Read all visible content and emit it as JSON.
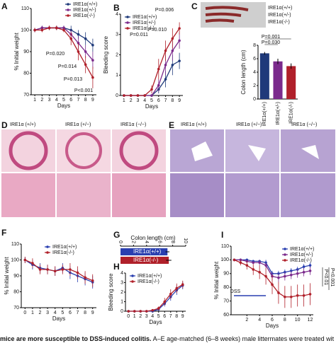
{
  "panel_labels": [
    "A",
    "B",
    "C",
    "D",
    "E",
    "F",
    "G",
    "H",
    "I"
  ],
  "images": {
    "C": [
      "IRE1α(+/+)",
      "IRE1α(+/-)",
      "IRE1α(-/-)"
    ],
    "D": [
      "IRE1α (+/+)",
      "IRE1α (+/−)",
      "IRE1α (−/−)"
    ],
    "E": [
      "IRE1α (+/+)",
      "IRE1α (+/−)",
      "IRE1α (−/−)"
    ]
  },
  "caption_bold": "mice are more susceptible to DSS-induced colitis.",
  "caption_rest": " A–E age-matched (6–8 weeks) male littermates were treated wit",
  "chart_data": [
    {
      "type": "line",
      "xlabel": "Days",
      "ylabel": "% Initial weight",
      "legend": "upper right",
      "x": [
        1,
        2,
        3,
        4,
        5,
        6,
        7,
        8,
        9
      ],
      "xlim": [
        0.5,
        9.5
      ],
      "xticks": [
        1,
        2,
        3,
        4,
        5,
        6,
        7,
        8,
        9
      ],
      "ylim": [
        70,
        110
      ],
      "yticks": [
        70,
        80,
        90,
        100,
        110
      ],
      "series": [
        {
          "name": "IRE1α(+/+)",
          "color": "#1f3a7a",
          "values": [
            100,
            101,
            101,
            101,
            101,
            100,
            98,
            96,
            93
          ],
          "errors": [
            1,
            1,
            1,
            1,
            1,
            2,
            2,
            3,
            3
          ]
        },
        {
          "name": "IRE1α(+/-)",
          "color": "#7b2a8c",
          "values": [
            100,
            101,
            101,
            101,
            101,
            98,
            94,
            90,
            86
          ],
          "errors": [
            1,
            1,
            1,
            1,
            1,
            2,
            3,
            3,
            4
          ]
        },
        {
          "name": "IRE1α(-/-)",
          "color": "#b0202a",
          "values": [
            100,
            100,
            101,
            101,
            100,
            96,
            90,
            84,
            78
          ],
          "errors": [
            1,
            1,
            1,
            1,
            1,
            3,
            4,
            4,
            5
          ]
        }
      ],
      "annotations": [
        "P=0.020",
        "P=0.014",
        "P=0.013",
        "P<0.001"
      ]
    },
    {
      "type": "line",
      "xlabel": "Days",
      "ylabel": "Bleeding score",
      "legend": "upper left",
      "x": [
        1,
        2,
        3,
        4,
        5,
        6,
        7,
        8,
        9
      ],
      "xlim": [
        0.5,
        9.5
      ],
      "xticks": [
        1,
        2,
        3,
        4,
        5,
        6,
        7,
        8,
        9
      ],
      "ylim": [
        0,
        4
      ],
      "yticks": [
        0,
        1,
        2,
        3,
        4
      ],
      "series": [
        {
          "name": "IRE1α(+/+)",
          "color": "#1f3a7a",
          "values": [
            0,
            0,
            0,
            0,
            0,
            0.3,
            0.8,
            1.5,
            1.7
          ],
          "errors": [
            0,
            0,
            0,
            0,
            0,
            0.2,
            0.4,
            0.5,
            0.4
          ]
        },
        {
          "name": "IRE1α(+/-)",
          "color": "#7b2a8c",
          "values": [
            0,
            0,
            0,
            0,
            0,
            0.5,
            1.5,
            2.2,
            2.7
          ],
          "errors": [
            0,
            0,
            0,
            0,
            0,
            0.3,
            0.5,
            0.5,
            0.4
          ]
        },
        {
          "name": "IRE1α(-/-)",
          "color": "#b0202a",
          "values": [
            0,
            0,
            0,
            0,
            0.3,
            1.3,
            2.2,
            2.8,
            3.3
          ],
          "errors": [
            0,
            0,
            0,
            0,
            0.2,
            0.5,
            0.5,
            0.5,
            0.3
          ]
        }
      ],
      "annotations": [
        "P=0.006",
        "P=0.010",
        "P=0.011"
      ]
    },
    {
      "type": "bar",
      "ylabel": "Colon length (cm)",
      "categories": [
        "IRE1α(+/+)",
        "IRE1α(+/-)",
        "IRE1α(-/-)"
      ],
      "values": [
        6.8,
        5.6,
        4.9
      ],
      "errors": [
        0.2,
        0.4,
        0.4
      ],
      "colors": [
        "#1f3a7a",
        "#7b2a8c",
        "#b0202a"
      ],
      "ylim": [
        0,
        8
      ],
      "yticks": [
        0,
        2,
        4,
        6,
        8
      ],
      "annotations": [
        "P=0.001",
        "P=0.030"
      ]
    },
    {
      "type": "line",
      "xlabel": "Days",
      "ylabel": "% Initial weight",
      "legend": "upper center",
      "x": [
        0,
        1,
        2,
        3,
        4,
        5,
        6,
        7,
        8,
        9
      ],
      "xlim": [
        -0.5,
        9.5
      ],
      "xticks": [
        0,
        1,
        2,
        3,
        4,
        5,
        6,
        7,
        8,
        9
      ],
      "ylim": [
        70,
        110
      ],
      "yticks": [
        70,
        80,
        90,
        100,
        110
      ],
      "series": [
        {
          "name": "IRE1α(+/+)",
          "color": "#2a3fb0",
          "values": [
            100,
            97,
            95,
            94,
            93,
            95,
            92,
            90,
            88,
            86
          ],
          "errors": [
            2,
            3,
            3,
            3,
            3,
            3,
            4,
            4,
            4,
            4
          ]
        },
        {
          "name": "IRE1α(-/-)",
          "color": "#b0202a",
          "values": [
            100,
            98,
            94,
            94,
            93,
            94,
            94,
            92,
            89,
            87
          ],
          "errors": [
            2,
            3,
            3,
            3,
            3,
            3,
            4,
            4,
            4,
            4
          ]
        }
      ]
    },
    {
      "type": "barh",
      "xlabel": "Colon length (cm)",
      "categories": [
        "IRE1α(+/+)",
        "IRE1α(-/-)"
      ],
      "values": [
        7.2,
        7.4
      ],
      "errors": [
        0.3,
        0.4
      ],
      "colors": [
        "#2a3fb0",
        "#b0202a"
      ],
      "xlim": [
        0,
        10
      ],
      "xticks": [
        0,
        2,
        4,
        6,
        8,
        10
      ]
    },
    {
      "type": "line",
      "xlabel": "Days",
      "ylabel": "Bleeding score",
      "legend": "upper left",
      "x": [
        0,
        1,
        2,
        3,
        4,
        5,
        6,
        7,
        8,
        9
      ],
      "xlim": [
        -0.5,
        9.5
      ],
      "xticks": [
        0,
        1,
        2,
        3,
        4,
        5,
        6,
        7,
        8,
        9
      ],
      "ylim": [
        0,
        4
      ],
      "yticks": [
        0,
        1,
        2,
        3,
        4
      ],
      "series": [
        {
          "name": "IRE1α(+/+)",
          "color": "#2a3fb0",
          "values": [
            0,
            0,
            0,
            0,
            0,
            0.2,
            0.8,
            1.5,
            2.2,
            2.7
          ],
          "errors": [
            0,
            0,
            0,
            0,
            0,
            0.2,
            0.3,
            0.4,
            0.5,
            0.4
          ]
        },
        {
          "name": "IRE1α(-/-)",
          "color": "#b0202a",
          "values": [
            0,
            0,
            0,
            0,
            0.1,
            0.3,
            1.0,
            1.8,
            2.4,
            2.8
          ],
          "errors": [
            0,
            0,
            0,
            0,
            0.1,
            0.2,
            0.4,
            0.5,
            0.5,
            0.4
          ]
        }
      ]
    },
    {
      "type": "line",
      "xlabel": "Days",
      "ylabel": "% Initial weight",
      "legend": "upper right",
      "x": [
        0,
        1,
        2,
        3,
        4,
        5,
        6,
        7,
        8,
        9,
        10,
        11,
        12
      ],
      "xlim": [
        -0.5,
        12.5
      ],
      "xticks": [
        2,
        4,
        6,
        8,
        10,
        12
      ],
      "ylim": [
        60,
        110
      ],
      "yticks": [
        60,
        70,
        80,
        90,
        100,
        110
      ],
      "series": [
        {
          "name": "IRE1α(+/+)",
          "color": "#2a3fb0",
          "values": [
            100,
            100,
            100,
            99,
            99,
            98,
            90,
            90,
            91,
            92,
            93,
            95,
            96
          ],
          "errors": [
            1,
            1,
            1,
            1,
            1,
            2,
            2,
            2,
            2,
            2,
            2,
            2,
            2
          ]
        },
        {
          "name": "IRE1α(+/-)",
          "color": "#7b2a8c",
          "values": [
            100,
            100,
            99,
            98,
            98,
            96,
            88,
            87,
            88,
            89,
            90,
            91,
            92
          ],
          "errors": [
            1,
            1,
            1,
            1,
            2,
            2,
            3,
            3,
            3,
            3,
            3,
            3,
            3
          ]
        },
        {
          "name": "IRE1α(-/-)",
          "color": "#b0202a",
          "values": [
            100,
            98,
            96,
            93,
            91,
            88,
            82,
            76,
            73,
            73,
            74,
            74,
            75
          ],
          "errors": [
            1,
            2,
            3,
            4,
            5,
            6,
            7,
            8,
            8,
            8,
            8,
            8,
            8
          ]
        }
      ],
      "annotations": [
        "DSS",
        "P<0.01",
        "P<0.001"
      ]
    }
  ]
}
